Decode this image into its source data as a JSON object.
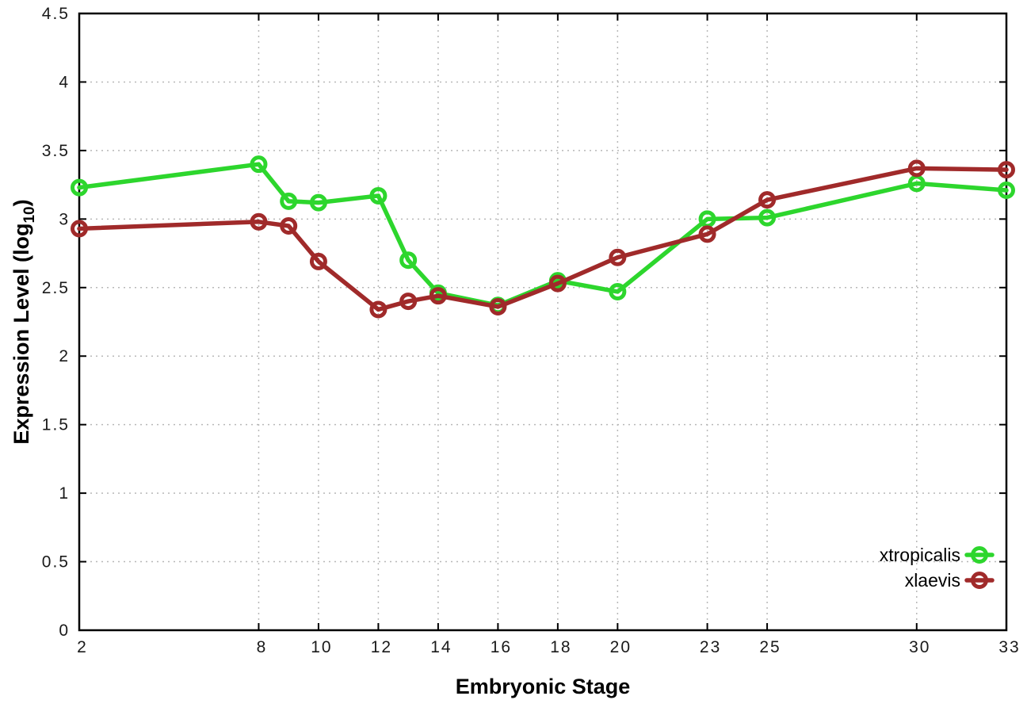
{
  "figure": {
    "background": "#ffffff"
  },
  "chart_data": {
    "type": "line",
    "title": "",
    "xlabel": "Embryonic Stage",
    "ylabel": "Expression Level (log10)",
    "ylabel_parts": [
      "Expression Level (log",
      "10",
      ")"
    ],
    "x": [
      2,
      8,
      9,
      10,
      12,
      13,
      14,
      16,
      18,
      20,
      23,
      25,
      30,
      33
    ],
    "series": [
      {
        "name": "xtropicalis",
        "color": "#2dd62d",
        "marker": "open-circle",
        "values": [
          3.23,
          3.4,
          3.13,
          3.12,
          3.17,
          2.7,
          2.46,
          2.37,
          2.55,
          2.47,
          3.0,
          3.01,
          3.26,
          3.21
        ]
      },
      {
        "name": "xlaevis",
        "color": "#a02a2a",
        "marker": "open-circle",
        "values": [
          2.93,
          2.98,
          2.95,
          2.69,
          2.34,
          2.4,
          2.44,
          2.36,
          2.53,
          2.72,
          2.89,
          3.14,
          3.37,
          3.36
        ]
      }
    ],
    "x_ticks": [
      2,
      8,
      10,
      12,
      14,
      16,
      18,
      20,
      23,
      25,
      30,
      33
    ],
    "x_tick_labels": [
      "2",
      "8",
      "10",
      "12",
      "14",
      "16",
      "18",
      "20",
      "23",
      "25",
      "30",
      "33"
    ],
    "y_ticks": [
      0,
      0.5,
      1,
      1.5,
      2,
      2.5,
      3,
      3.5,
      4,
      4.5
    ],
    "y_tick_labels": [
      "0",
      "0.5",
      "1",
      "1.5",
      "2",
      "2.5",
      "3",
      "3.5",
      "4",
      "4.5"
    ],
    "xlim": [
      2,
      33
    ],
    "ylim": [
      0,
      4.5
    ],
    "grid": true,
    "grid_style": "dotted",
    "legend_position": "bottom-right-inside",
    "axis_color": "#000000",
    "grid_color": "#b8b8b8"
  }
}
